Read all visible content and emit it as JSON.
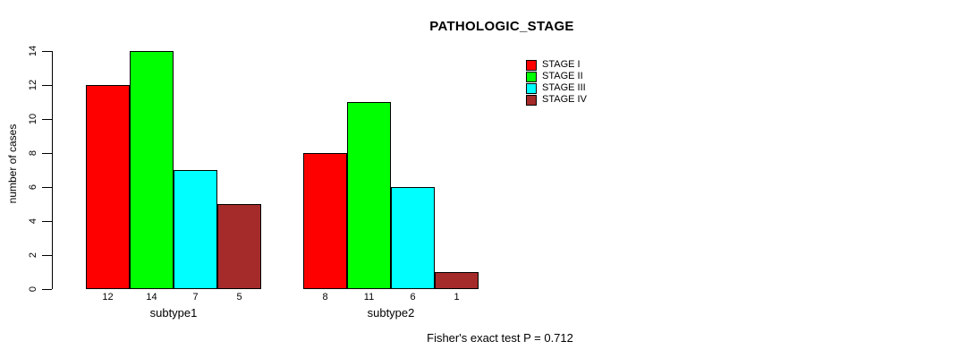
{
  "title": "PATHOLOGIC_STAGE",
  "footnote": "Fisher's exact test P = 0.712",
  "chart_data": {
    "type": "bar",
    "title": "PATHOLOGIC_STAGE",
    "categories": [
      "subtype1",
      "subtype2"
    ],
    "series": [
      {
        "name": "STAGE I",
        "color": "#FF0000",
        "values": [
          12,
          8
        ]
      },
      {
        "name": "STAGE II",
        "color": "#00FF00",
        "values": [
          14,
          11
        ]
      },
      {
        "name": "STAGE III",
        "color": "#00FFFF",
        "values": [
          7,
          6
        ]
      },
      {
        "name": "STAGE IV",
        "color": "#A52A2A",
        "values": [
          5,
          1
        ]
      }
    ],
    "xlabel": "",
    "ylabel": "number of cases",
    "ylim": [
      0,
      14
    ],
    "yticks": [
      0,
      2,
      4,
      6,
      8,
      10,
      12,
      14
    ],
    "bar_value_labels": true,
    "grid": false,
    "legend_position": "top-right",
    "annotation": "Fisher's exact test P = 0.712"
  }
}
